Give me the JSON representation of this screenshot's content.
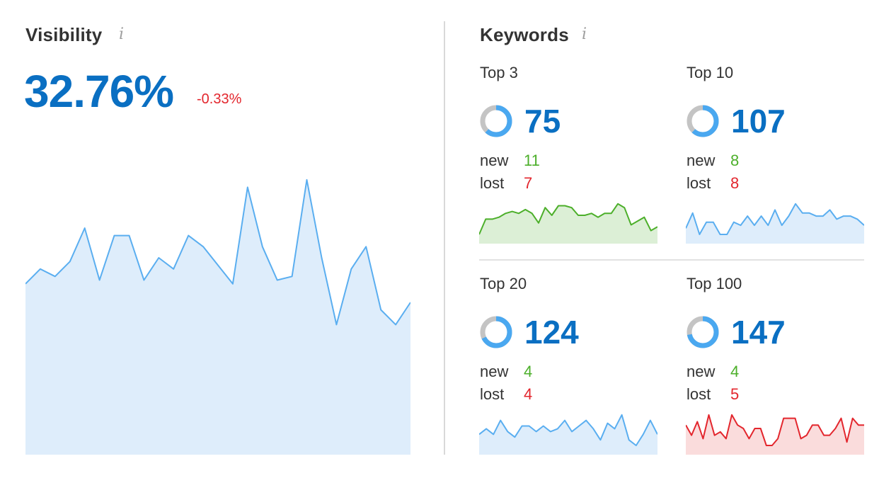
{
  "visibility": {
    "title": "Visibility",
    "value": "32.76%",
    "delta": "-0.33%",
    "chart_data": {
      "type": "area",
      "y": [
        46,
        50,
        48,
        52,
        61,
        47,
        59,
        59,
        47,
        53,
        50,
        59,
        56,
        51,
        46,
        72,
        56,
        47,
        48,
        74,
        53,
        35,
        50,
        56,
        39,
        35,
        41
      ],
      "ylim": [
        0,
        90
      ]
    }
  },
  "keywords": {
    "title": "Keywords",
    "cards": [
      {
        "label": "Top 3",
        "value": "75",
        "new_label": "new",
        "new_value": "11",
        "lost_label": "lost",
        "lost_value": "7",
        "donut_fraction": 0.62,
        "spark_color": "#4caf2a",
        "spark_fill": "#dcefd6",
        "spark": [
          3,
          7,
          7,
          7.5,
          8.5,
          9,
          8.5,
          9.5,
          8.5,
          6,
          10,
          8,
          10.5,
          10.5,
          10,
          8,
          8,
          8.5,
          7.5,
          8.5,
          8.5,
          11,
          10,
          5.5,
          6.5,
          7.5,
          4,
          5
        ]
      },
      {
        "label": "Top 10",
        "value": "107",
        "new_label": "new",
        "new_value": "8",
        "lost_label": "lost",
        "lost_value": "8",
        "donut_fraction": 0.62,
        "spark_color": "#5aaef0",
        "spark_fill": "#deedfb",
        "spark": [
          3,
          8,
          1,
          5,
          5,
          1,
          1,
          5,
          4,
          7,
          4,
          7,
          4,
          9,
          4,
          7,
          11,
          8,
          8,
          7,
          7,
          9,
          6,
          7,
          7,
          6,
          4
        ]
      },
      {
        "label": "Top 20",
        "value": "124",
        "new_label": "new",
        "new_value": "4",
        "lost_label": "lost",
        "lost_value": "4",
        "donut_fraction": 0.68,
        "spark_color": "#5aaef0",
        "spark_fill": "#deedfb",
        "spark": [
          4,
          6,
          4,
          9,
          5,
          3,
          7,
          7,
          5,
          7,
          5,
          6,
          9,
          5,
          7,
          9,
          6,
          2,
          8,
          6,
          11,
          2,
          0,
          4,
          9,
          4
        ]
      },
      {
        "label": "Top 100",
        "value": "147",
        "new_label": "new",
        "new_value": "4",
        "lost_label": "lost",
        "lost_value": "5",
        "donut_fraction": 0.72,
        "spark_color": "#e3262d",
        "spark_fill": "#fadcdc",
        "spark": [
          6,
          3,
          7,
          2,
          9,
          3,
          4,
          2,
          9,
          6,
          5,
          2,
          5,
          5,
          0,
          0,
          2,
          8,
          8,
          8,
          2,
          3,
          6,
          6,
          3,
          3,
          5,
          8,
          1,
          8,
          6,
          6
        ]
      }
    ]
  },
  "colors": {
    "accent": "#0a6fc2",
    "positive": "#4caf2a",
    "negative": "#e3262d",
    "donut_track": "#c4c4c4",
    "donut_fill": "#4aa8f0",
    "visibility_line": "#5aaef0",
    "visibility_fill": "#deedfb"
  },
  "icons": {
    "info": "info-icon",
    "info_glyph": "i"
  }
}
